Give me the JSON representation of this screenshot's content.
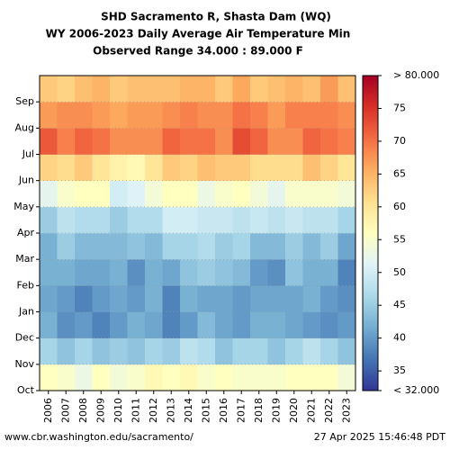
{
  "chart_data": {
    "type": "heatmap",
    "title": "SHD Sacramento R, Shasta Dam (WQ)",
    "subtitle": "WY 2006-2023 Daily Average Air Temperature Min",
    "range_note": "Observed Range 34.000 : 89.000 F",
    "categories": [
      "2006",
      "2007",
      "2008",
      "2009",
      "2010",
      "2011",
      "2012",
      "2013",
      "2014",
      "2015",
      "2016",
      "2017",
      "2018",
      "2019",
      "2020",
      "2021",
      "2022",
      "2023"
    ],
    "months": [
      "Oct",
      "Nov",
      "Dec",
      "Jan",
      "Feb",
      "Mar",
      "Apr",
      "May",
      "Jun",
      "Jul",
      "Aug",
      "Sep"
    ],
    "values": [
      [
        56,
        46,
        42,
        41,
        42,
        42,
        45,
        52,
        62,
        72,
        67,
        63
      ],
      [
        55,
        44,
        39,
        40,
        42,
        45,
        48,
        55,
        61,
        69,
        68,
        62
      ],
      [
        53,
        46,
        40,
        38,
        41,
        43,
        47,
        56,
        63,
        71,
        68,
        64
      ],
      [
        56,
        44,
        38,
        40,
        41,
        43,
        47,
        56,
        60,
        70,
        67,
        65
      ],
      [
        54,
        45,
        40,
        41,
        42,
        43,
        45,
        50,
        58,
        68,
        66,
        63
      ],
      [
        55,
        44,
        42,
        40,
        39,
        44,
        47,
        51,
        57,
        68,
        67,
        64
      ],
      [
        57,
        46,
        41,
        42,
        42,
        43,
        47,
        54,
        60,
        68,
        67,
        64
      ],
      [
        56,
        45,
        38,
        38,
        41,
        46,
        50,
        56,
        63,
        71,
        68,
        64
      ],
      [
        57,
        48,
        40,
        42,
        44,
        46,
        50,
        56,
        62,
        70,
        69,
        65
      ],
      [
        55,
        47,
        43,
        41,
        45,
        47,
        49,
        53,
        64,
        70,
        68,
        65
      ],
      [
        56,
        44,
        41,
        41,
        44,
        45,
        49,
        55,
        63,
        68,
        68,
        63
      ],
      [
        55,
        46,
        40,
        40,
        43,
        46,
        48,
        56,
        63,
        73,
        70,
        66
      ],
      [
        55,
        46,
        42,
        41,
        40,
        43,
        49,
        54,
        61,
        71,
        69,
        63
      ],
      [
        55,
        44,
        42,
        41,
        39,
        43,
        48,
        52,
        61,
        68,
        67,
        64
      ],
      [
        56,
        46,
        41,
        41,
        44,
        45,
        49,
        55,
        61,
        68,
        69,
        65
      ],
      [
        56,
        48,
        40,
        42,
        42,
        43,
        48,
        55,
        64,
        71,
        69,
        64
      ],
      [
        56,
        46,
        39,
        40,
        42,
        45,
        48,
        55,
        62,
        70,
        69,
        67
      ],
      [
        54,
        44,
        40,
        39,
        38,
        41,
        46,
        54,
        60,
        69,
        68,
        64
      ]
    ],
    "clim": [
      32,
      80
    ],
    "cticks": [
      {
        "value": 32,
        "label": "< 32.000"
      },
      35,
      40,
      45,
      50,
      55,
      60,
      65,
      70,
      75,
      {
        "value": 80,
        "label": "> 80.000"
      }
    ],
    "colors": [
      "#313695",
      "#4575b4",
      "#74add1",
      "#abd9e9",
      "#e0f3f8",
      "#ffffbf",
      "#fee090",
      "#fdae61",
      "#f46d43",
      "#d73027",
      "#a50026"
    ],
    "grid": true,
    "source": "www.cbr.washington.edu/sacramento/",
    "timestamp": "27 Apr 2025 15:46:48 PDT"
  }
}
